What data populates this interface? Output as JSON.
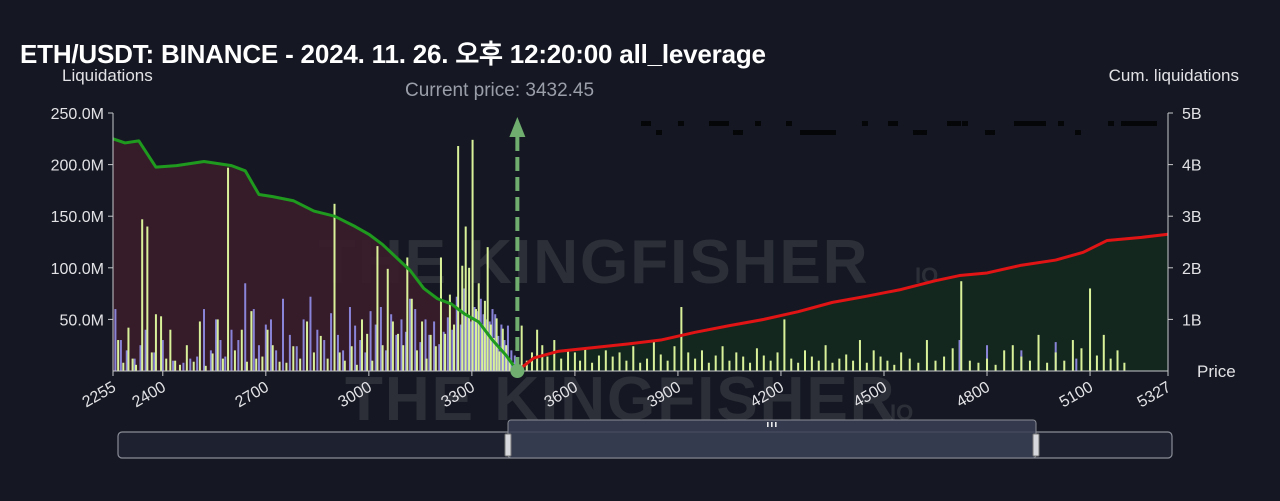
{
  "title": "ETH/USDT: BINANCE - 2024. 11. 26. 오후 12:20:00 all_leverage",
  "watermark": {
    "text": "THE KINGFISHER",
    "suffix": "IO"
  },
  "chart_data": {
    "type": "bar",
    "ylabel_left": "Liquidations",
    "ylabel_right": "Cum. liquidations",
    "xlabel": "Price",
    "current_price_label": "Current price: 3432.45",
    "current_price": 3432.45,
    "x_range": [
      2255,
      5327
    ],
    "y_left_range": [
      0,
      250000000
    ],
    "y_right_range": [
      0,
      5000000000
    ],
    "x_ticks": [
      "2255",
      "2400",
      "2700",
      "3000",
      "3300",
      "3600",
      "3900",
      "4200",
      "4500",
      "4800",
      "5100",
      "5327"
    ],
    "x_tick_values": [
      2255,
      2400,
      2700,
      3000,
      3300,
      3600,
      3900,
      4200,
      4500,
      4800,
      5100,
      5327
    ],
    "y_left_ticks": [
      "50.0M",
      "100.0M",
      "150.0M",
      "200.0M",
      "250.0M"
    ],
    "y_left_tick_values": [
      50000000,
      100000000,
      150000000,
      200000000,
      250000000
    ],
    "y_right_ticks": [
      "1B",
      "2B",
      "3B",
      "4B",
      "5B"
    ],
    "y_right_tick_values": [
      1000000000,
      2000000000,
      3000000000,
      4000000000,
      5000000000
    ],
    "colors": {
      "long_bar": "#d9f29a",
      "short_bar": "#8a84d8",
      "cum_long_line": "#1f9a1f",
      "cum_short_line": "#e01414",
      "long_fill": "#3a1c2a",
      "short_fill": "#14291f",
      "current_price_marker": "#6fae6f",
      "background": "#151822"
    },
    "cum_long": {
      "x": [
        2255,
        2290,
        2330,
        2380,
        2440,
        2520,
        2600,
        2640,
        2680,
        2720,
        2780,
        2840,
        2900,
        2960,
        3000,
        3040,
        3080,
        3120,
        3160,
        3200,
        3240,
        3280,
        3320,
        3360,
        3400,
        3432.45
      ],
      "y": [
        4500000000,
        4420000000,
        4460000000,
        3950000000,
        3980000000,
        4060000000,
        3980000000,
        3880000000,
        3420000000,
        3380000000,
        3300000000,
        3100000000,
        3000000000,
        2800000000,
        2650000000,
        2450000000,
        2200000000,
        1950000000,
        1600000000,
        1400000000,
        1300000000,
        1100000000,
        950000000,
        600000000,
        300000000,
        0
      ]
    },
    "cum_short": {
      "x": [
        3432.45,
        3480,
        3550,
        3650,
        3750,
        3850,
        3950,
        4050,
        4150,
        4250,
        4350,
        4450,
        4550,
        4650,
        4720,
        4800,
        4900,
        5000,
        5080,
        5150,
        5250,
        5327
      ],
      "y": [
        0,
        250000000,
        380000000,
        450000000,
        520000000,
        600000000,
        750000000,
        880000000,
        1000000000,
        1150000000,
        1330000000,
        1450000000,
        1580000000,
        1750000000,
        1850000000,
        1900000000,
        2050000000,
        2150000000,
        2300000000,
        2530000000,
        2590000000,
        2650000000
      ]
    },
    "long_bars": {
      "x": [
        2270,
        2285,
        2300,
        2312,
        2322,
        2340,
        2355,
        2368,
        2380,
        2395,
        2410,
        2422,
        2436,
        2450,
        2470,
        2490,
        2508,
        2525,
        2545,
        2560,
        2575,
        2590,
        2610,
        2630,
        2645,
        2658,
        2672,
        2690,
        2705,
        2720,
        2740,
        2760,
        2780,
        2800,
        2820,
        2840,
        2860,
        2880,
        2900,
        2915,
        2930,
        2950,
        2965,
        2980,
        2995,
        3010,
        3025,
        3040,
        3055,
        3070,
        3085,
        3100,
        3112,
        3125,
        3140,
        3155,
        3168,
        3180,
        3195,
        3210,
        3222,
        3236,
        3248,
        3260,
        3272,
        3282,
        3292,
        3302,
        3312,
        3320,
        3330,
        3338,
        3346,
        3355,
        3364,
        3372,
        3380,
        3390,
        3400,
        3410,
        3420
      ],
      "y": [
        30000000,
        8000000,
        42000000,
        12000000,
        6000000,
        147000000,
        140000000,
        18000000,
        55000000,
        53000000,
        12000000,
        40000000,
        10000000,
        6000000,
        25000000,
        9000000,
        48000000,
        5000000,
        17000000,
        50000000,
        12000000,
        197000000,
        20000000,
        40000000,
        9000000,
        58000000,
        12000000,
        14000000,
        40000000,
        25000000,
        9000000,
        8000000,
        24000000,
        12000000,
        48000000,
        18000000,
        34000000,
        12000000,
        162000000,
        18000000,
        10000000,
        24000000,
        6000000,
        50000000,
        36000000,
        10000000,
        121000000,
        25000000,
        99000000,
        48000000,
        36000000,
        25000000,
        110000000,
        70000000,
        20000000,
        48000000,
        12000000,
        35000000,
        24000000,
        110000000,
        36000000,
        74000000,
        45000000,
        218000000,
        102000000,
        140000000,
        100000000,
        224000000,
        60000000,
        85000000,
        45000000,
        68000000,
        120000000,
        45000000,
        32000000,
        51000000,
        19000000,
        41000000,
        25000000,
        12000000,
        8000000
      ]
    },
    "short_bars": {
      "x": [
        2262,
        2278,
        2295,
        2318,
        2335,
        2350,
        2375,
        2400,
        2430,
        2460,
        2480,
        2500,
        2520,
        2540,
        2555,
        2568,
        2582,
        2600,
        2620,
        2640,
        2665,
        2680,
        2700,
        2715,
        2730,
        2750,
        2770,
        2790,
        2810,
        2830,
        2850,
        2870,
        2890,
        2910,
        2925,
        2945,
        2960,
        2975,
        2990,
        3005,
        3020,
        3035,
        3050,
        3065,
        3080,
        3095,
        3108,
        3120,
        3135,
        3150,
        3165,
        3176,
        3190,
        3205,
        3218,
        3230,
        3243,
        3256,
        3268,
        3278,
        3288,
        3298,
        3308,
        3318,
        3326,
        3334,
        3344,
        3352,
        3360,
        3368,
        3377,
        3386,
        3395,
        3405,
        3415,
        3425,
        4720,
        4800,
        4900,
        4950,
        5000,
        5060,
        5100
      ],
      "y": [
        60000000,
        30000000,
        20000000,
        12000000,
        25000000,
        40000000,
        18000000,
        30000000,
        10000000,
        8000000,
        12000000,
        14000000,
        60000000,
        20000000,
        50000000,
        30000000,
        14000000,
        40000000,
        30000000,
        85000000,
        60000000,
        25000000,
        45000000,
        50000000,
        20000000,
        70000000,
        35000000,
        24000000,
        50000000,
        72000000,
        40000000,
        30000000,
        56000000,
        35000000,
        20000000,
        62000000,
        44000000,
        30000000,
        18000000,
        58000000,
        45000000,
        62000000,
        20000000,
        55000000,
        35000000,
        50000000,
        38000000,
        70000000,
        60000000,
        28000000,
        50000000,
        35000000,
        48000000,
        26000000,
        38000000,
        52000000,
        40000000,
        72000000,
        45000000,
        80000000,
        55000000,
        48000000,
        62000000,
        58000000,
        70000000,
        55000000,
        50000000,
        48000000,
        60000000,
        55000000,
        34000000,
        45000000,
        30000000,
        44000000,
        20000000,
        15000000,
        30000000,
        25000000,
        20000000,
        15000000,
        28000000,
        12000000,
        10000000
      ]
    },
    "short_side_bars": {
      "x": [
        3445,
        3460,
        3475,
        3490,
        3505,
        3520,
        3540,
        3560,
        3580,
        3600,
        3615,
        3630,
        3650,
        3670,
        3690,
        3710,
        3730,
        3750,
        3770,
        3790,
        3810,
        3830,
        3850,
        3870,
        3890,
        3910,
        3930,
        3950,
        3970,
        3990,
        4010,
        4030,
        4050,
        4070,
        4090,
        4110,
        4130,
        4150,
        4170,
        4190,
        4210,
        4230,
        4250,
        4270,
        4290,
        4310,
        4330,
        4350,
        4370,
        4390,
        4410,
        4430,
        4450,
        4470,
        4490,
        4510,
        4530,
        4550,
        4575,
        4600,
        4625,
        4650,
        4675,
        4700,
        4725,
        4750,
        4775,
        4800,
        4825,
        4850,
        4875,
        4900,
        4925,
        4950,
        4975,
        5000,
        5025,
        5050,
        5075,
        5100,
        5120,
        5140,
        5160,
        5180,
        5200
      ],
      "y": [
        44000000,
        10000000,
        18000000,
        40000000,
        25000000,
        14000000,
        30000000,
        12000000,
        20000000,
        18000000,
        10000000,
        22000000,
        8000000,
        15000000,
        20000000,
        14000000,
        18000000,
        10000000,
        24000000,
        8000000,
        12000000,
        30000000,
        16000000,
        10000000,
        24000000,
        62000000,
        18000000,
        12000000,
        20000000,
        8000000,
        15000000,
        24000000,
        10000000,
        18000000,
        14000000,
        8000000,
        22000000,
        15000000,
        10000000,
        18000000,
        50000000,
        12000000,
        8000000,
        20000000,
        14000000,
        10000000,
        25000000,
        8000000,
        12000000,
        16000000,
        10000000,
        30000000,
        8000000,
        20000000,
        14000000,
        10000000,
        6000000,
        18000000,
        12000000,
        8000000,
        30000000,
        10000000,
        14000000,
        22000000,
        87000000,
        10000000,
        8000000,
        12000000,
        6000000,
        20000000,
        25000000,
        14000000,
        10000000,
        35000000,
        8000000,
        18000000,
        10000000,
        30000000,
        22000000,
        80000000,
        15000000,
        35000000,
        12000000,
        20000000,
        8000000
      ]
    }
  }
}
